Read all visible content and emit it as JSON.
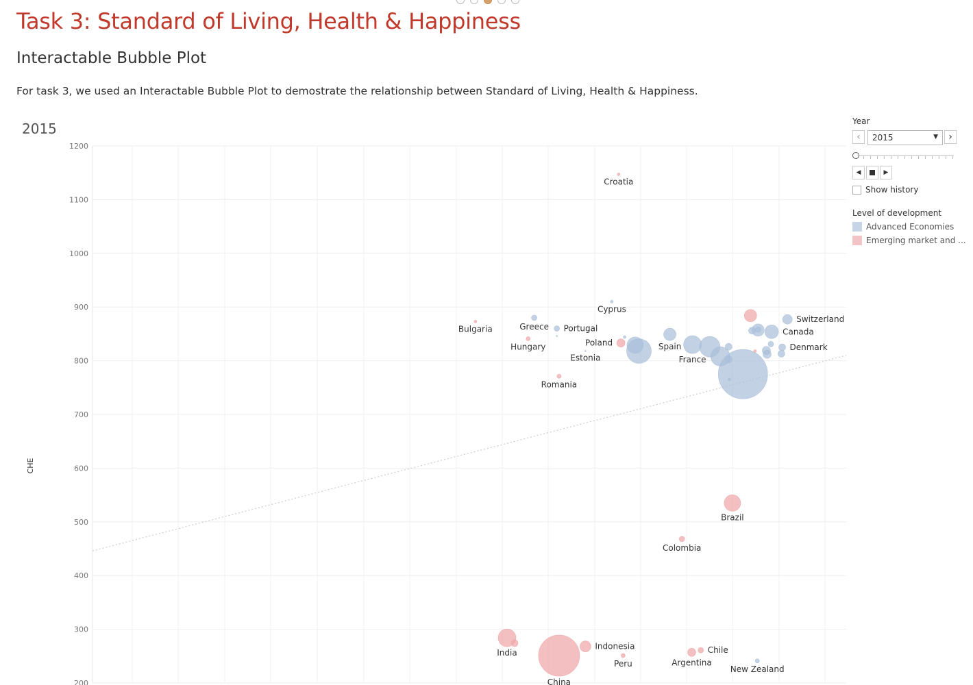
{
  "header": {
    "title": "Task 3: Standard of Living, Health & Happiness",
    "subtitle": "Interactable Bubble Plot",
    "description": "For task 3, we used an Interactable Bubble Plot to demostrate the relationship between Standard of Living, Health & Happiness."
  },
  "pager": {
    "count": 5,
    "active_index": 2
  },
  "colors": {
    "title": "#c0392b",
    "advanced": "#aabfd9",
    "emerging": "#eea6a8",
    "grid": "#eeeeee",
    "trend": "#cccccc"
  },
  "filter": {
    "title": "Year",
    "selected": "2015",
    "prev_icon": "chevron-left-icon",
    "next_icon": "chevron-right-icon",
    "show_history_label": "Show history",
    "show_history_checked": false
  },
  "legend": {
    "title": "Level of development",
    "items": [
      {
        "label": "Advanced Economies",
        "color": "#c7d4e6"
      },
      {
        "label": "Emerging market and ...",
        "color": "#f2c4c6"
      }
    ]
  },
  "chart_data": {
    "type": "scatter",
    "title": "2015",
    "ylabel": "CHE",
    "xlabel": "",
    "ylim": [
      200,
      1200
    ],
    "xlim": [
      0,
      1000
    ],
    "yticks": [
      200,
      300,
      400,
      500,
      600,
      700,
      800,
      900,
      1000,
      1100,
      1200
    ],
    "grid": true,
    "legend_position": "right",
    "trendline": {
      "from": [
        0,
        446
      ],
      "to": [
        1000,
        810
      ]
    },
    "series": [
      {
        "name": "Advanced Economies",
        "color": "#aabfd9"
      },
      {
        "name": "Emerging market and ...",
        "color": "#eea6a8"
      }
    ],
    "points": [
      {
        "label": "Croatia",
        "x": 698,
        "y": 1147,
        "size": 2,
        "group": 1
      },
      {
        "label": "Cyprus",
        "x": 689,
        "y": 910,
        "size": 2,
        "group": 0
      },
      {
        "label": "Bulgaria",
        "x": 508,
        "y": 873,
        "size": 2,
        "group": 1
      },
      {
        "label": "Greece",
        "x": 586,
        "y": 880,
        "size": 4,
        "group": 0
      },
      {
        "label": "Portugal",
        "x": 616,
        "y": 860,
        "size": 4,
        "group": 0
      },
      {
        "label": "",
        "x": 616,
        "y": 846,
        "size": 1,
        "group": 0
      },
      {
        "label": "Hungary",
        "x": 578,
        "y": 841,
        "size": 3,
        "group": 1
      },
      {
        "label": "Poland",
        "x": 701,
        "y": 833,
        "size": 6,
        "group": 1
      },
      {
        "label": "",
        "x": 706,
        "y": 844,
        "size": 2,
        "group": 0
      },
      {
        "label": "Estonia",
        "x": 654,
        "y": 818,
        "size": 1,
        "group": 0
      },
      {
        "label": "Romania",
        "x": 619,
        "y": 771,
        "size": 3,
        "group": 1
      },
      {
        "label": "",
        "x": 720,
        "y": 829,
        "size": 12,
        "group": 0
      },
      {
        "label": "",
        "x": 725,
        "y": 818,
        "size": 18,
        "group": 0
      },
      {
        "label": "Spain",
        "x": 766,
        "y": 849,
        "size": 9,
        "group": 0
      },
      {
        "label": "France",
        "x": 796,
        "y": 830,
        "size": 13,
        "group": 0
      },
      {
        "label": "",
        "x": 819,
        "y": 826,
        "size": 15,
        "group": 0
      },
      {
        "label": "",
        "x": 833,
        "y": 808,
        "size": 14,
        "group": 0
      },
      {
        "label": "",
        "x": 844,
        "y": 802,
        "size": 5,
        "group": 0
      },
      {
        "label": "",
        "x": 844,
        "y": 826,
        "size": 5,
        "group": 0
      },
      {
        "label": "",
        "x": 845,
        "y": 765,
        "size": 2,
        "group": 0
      },
      {
        "label": "",
        "x": 863,
        "y": 775,
        "size": 36,
        "group": 0
      },
      {
        "label": "",
        "x": 873,
        "y": 884,
        "size": 9,
        "group": 1
      },
      {
        "label": "",
        "x": 875,
        "y": 856,
        "size": 5,
        "group": 0
      },
      {
        "label": "",
        "x": 883,
        "y": 857,
        "size": 9,
        "group": 0
      },
      {
        "label": "",
        "x": 883,
        "y": 858,
        "size": 4,
        "group": 0
      },
      {
        "label": "",
        "x": 879,
        "y": 818,
        "size": 2,
        "group": 1
      },
      {
        "label": "",
        "x": 894,
        "y": 819,
        "size": 6,
        "group": 0
      },
      {
        "label": "",
        "x": 895,
        "y": 812,
        "size": 6,
        "group": 0
      },
      {
        "label": "",
        "x": 900,
        "y": 831,
        "size": 4,
        "group": 0
      },
      {
        "label": "Canada",
        "x": 901,
        "y": 854,
        "size": 10,
        "group": 0
      },
      {
        "label": "Switzerland",
        "x": 922,
        "y": 877,
        "size": 7,
        "group": 0
      },
      {
        "label": "Denmark",
        "x": 915,
        "y": 825,
        "size": 5,
        "group": 0
      },
      {
        "label": "",
        "x": 914,
        "y": 813,
        "size": 5,
        "group": 0
      },
      {
        "label": "Brazil",
        "x": 849,
        "y": 535,
        "size": 12,
        "group": 1
      },
      {
        "label": "Colombia",
        "x": 782,
        "y": 468,
        "size": 4,
        "group": 1
      },
      {
        "label": "India",
        "x": 550,
        "y": 284,
        "size": 13,
        "group": 1
      },
      {
        "label": "",
        "x": 560,
        "y": 274,
        "size": 5,
        "group": 1
      },
      {
        "label": "China",
        "x": 619,
        "y": 251,
        "size": 30,
        "group": 1
      },
      {
        "label": "Indonesia",
        "x": 654,
        "y": 268,
        "size": 8,
        "group": 1
      },
      {
        "label": "Peru",
        "x": 704,
        "y": 251,
        "size": 3,
        "group": 1
      },
      {
        "label": "Argentina",
        "x": 795,
        "y": 257,
        "size": 6,
        "group": 1
      },
      {
        "label": "Chile",
        "x": 807,
        "y": 261,
        "size": 4,
        "group": 1
      },
      {
        "label": "New Zealand",
        "x": 882,
        "y": 241,
        "size": 3,
        "group": 0
      }
    ]
  }
}
